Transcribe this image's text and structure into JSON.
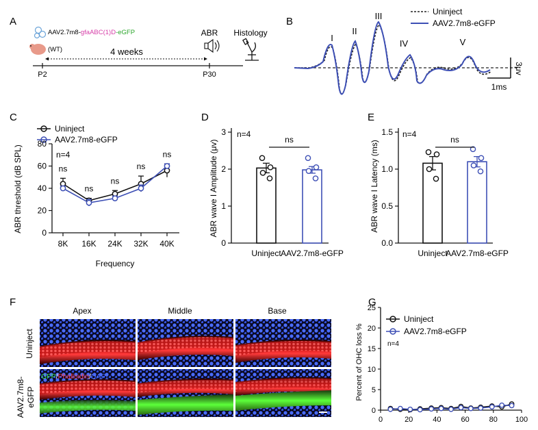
{
  "panel_letters": {
    "A": "A",
    "B": "B",
    "C": "C",
    "D": "D",
    "E": "E",
    "F": "F",
    "G": "G"
  },
  "panel_a": {
    "construct_prefix": "AAV2.7m8-",
    "construct_promoter": "gfaABC(1)D",
    "construct_suffix": "-eGFP",
    "mouse_label": "(WT)",
    "start_label": "P2",
    "end_label": "P30",
    "interval_label": "4 weeks",
    "abr_label": "ABR",
    "histology_label": "Histology",
    "colors": {
      "promoter": "#d63ea8",
      "egfp": "#2aa52a",
      "mouse": "#e89a8a"
    }
  },
  "panel_b": {
    "legend": [
      "Uninject",
      "AAV2.7m8-eGFP"
    ],
    "wave_labels": [
      "I",
      "II",
      "III",
      "IV",
      "V"
    ],
    "scale_voltage": "3μv",
    "scale_time": "1ms",
    "colors": {
      "uninject": "#222222",
      "aav": "#3d4fb5"
    }
  },
  "chart_data": [
    {
      "type": "line",
      "panel": "C",
      "ylabel": "ABR threshold (dB SPL)",
      "xlabel": "Frequency",
      "categories": [
        "8K",
        "16K",
        "24K",
        "32K",
        "40K"
      ],
      "ylim": [
        0,
        80
      ],
      "yticks": [
        "0",
        "20",
        "40",
        "60",
        "80"
      ],
      "series": [
        {
          "name": "Uninject",
          "values": [
            44,
            29,
            35,
            44,
            56
          ],
          "errors": [
            5,
            2,
            3,
            7,
            6
          ]
        },
        {
          "name": "AAV2.7m8-eGFP",
          "values": [
            40,
            27,
            31,
            40,
            60
          ],
          "errors": [
            2,
            3,
            2,
            3,
            2
          ]
        }
      ],
      "annotations": [
        "ns",
        "ns",
        "ns",
        "ns",
        "ns"
      ],
      "n_label": "n=4",
      "legend_position": "top-left"
    },
    {
      "type": "bar",
      "panel": "D",
      "ylabel": "ABR wave I Amplitude (μv)",
      "categories": [
        "Uninject",
        "AAV2.7m8-eGFP"
      ],
      "values": [
        2.03,
        1.98
      ],
      "errors": [
        0.13,
        0.09
      ],
      "points": [
        [
          2.3,
          2.05,
          1.9,
          1.75
        ],
        [
          2.3,
          2.05,
          1.95,
          1.75
        ]
      ],
      "ylim": [
        0,
        3
      ],
      "yticks": [
        "0",
        "1",
        "2",
        "3"
      ],
      "n_label": "n=4",
      "significance": "ns"
    },
    {
      "type": "bar",
      "panel": "E",
      "ylabel": "ABR wave I Latency (ms)",
      "categories": [
        "Uninject",
        "AAV2.7m8-eGFP"
      ],
      "values": [
        1.08,
        1.1
      ],
      "errors": [
        0.09,
        0.07
      ],
      "points": [
        [
          1.23,
          1.2,
          1.0,
          0.87
        ],
        [
          1.27,
          1.15,
          1.05,
          0.97
        ]
      ],
      "ylim": [
        0,
        1.5
      ],
      "yticks": [
        "0.0",
        "0.5",
        "1.0",
        "1.5"
      ],
      "n_label": "n=4",
      "significance": "ns"
    },
    {
      "type": "line",
      "panel": "G",
      "ylabel": "Percent of OHC loss %",
      "xlim": [
        0,
        100
      ],
      "ylim": [
        0,
        25
      ],
      "xticks": [
        "0",
        "20",
        "40",
        "60",
        "80",
        "100"
      ],
      "yticks": [
        "0",
        "5",
        "10",
        "15",
        "20",
        "25"
      ],
      "x": [
        7,
        14,
        21,
        28,
        36,
        43,
        50,
        57,
        64,
        71,
        79,
        86,
        93
      ],
      "series": [
        {
          "name": "Uninject",
          "values": [
            0.4,
            0.2,
            0.1,
            0.3,
            0.5,
            0.6,
            0.4,
            0.9,
            0.5,
            0.7,
            1.0,
            0.8,
            1.5
          ]
        },
        {
          "name": "AAV2.7m8-eGFP",
          "values": [
            0.2,
            0.4,
            0.2,
            0.1,
            0.3,
            0.4,
            0.2,
            0.6,
            0.4,
            0.5,
            0.8,
            1.2,
            1.1
          ]
        }
      ],
      "n_label": "n=4",
      "legend_position": "top-left"
    }
  ],
  "panel_f": {
    "columns": [
      "Apex",
      "Middle",
      "Base"
    ],
    "rows": [
      "Uninject",
      "AAV2.7m8-eGFP"
    ],
    "row_label_top": "Uninject",
    "row_label_bottom_1": "AAV2.7m8-",
    "row_label_bottom_2": "eGFP",
    "stain_gfp": "GFP",
    "stain_sep": "/",
    "stain_phalloidin": "Phalloidin",
    "stain_dapi": "DAPI",
    "colors": {
      "gfp": "#39e04a",
      "phalloidin": "#ff3a3a",
      "dapi": "#4a6cff"
    }
  },
  "colors": {
    "uninject": "#111111",
    "aav": "#3d4fb5"
  }
}
